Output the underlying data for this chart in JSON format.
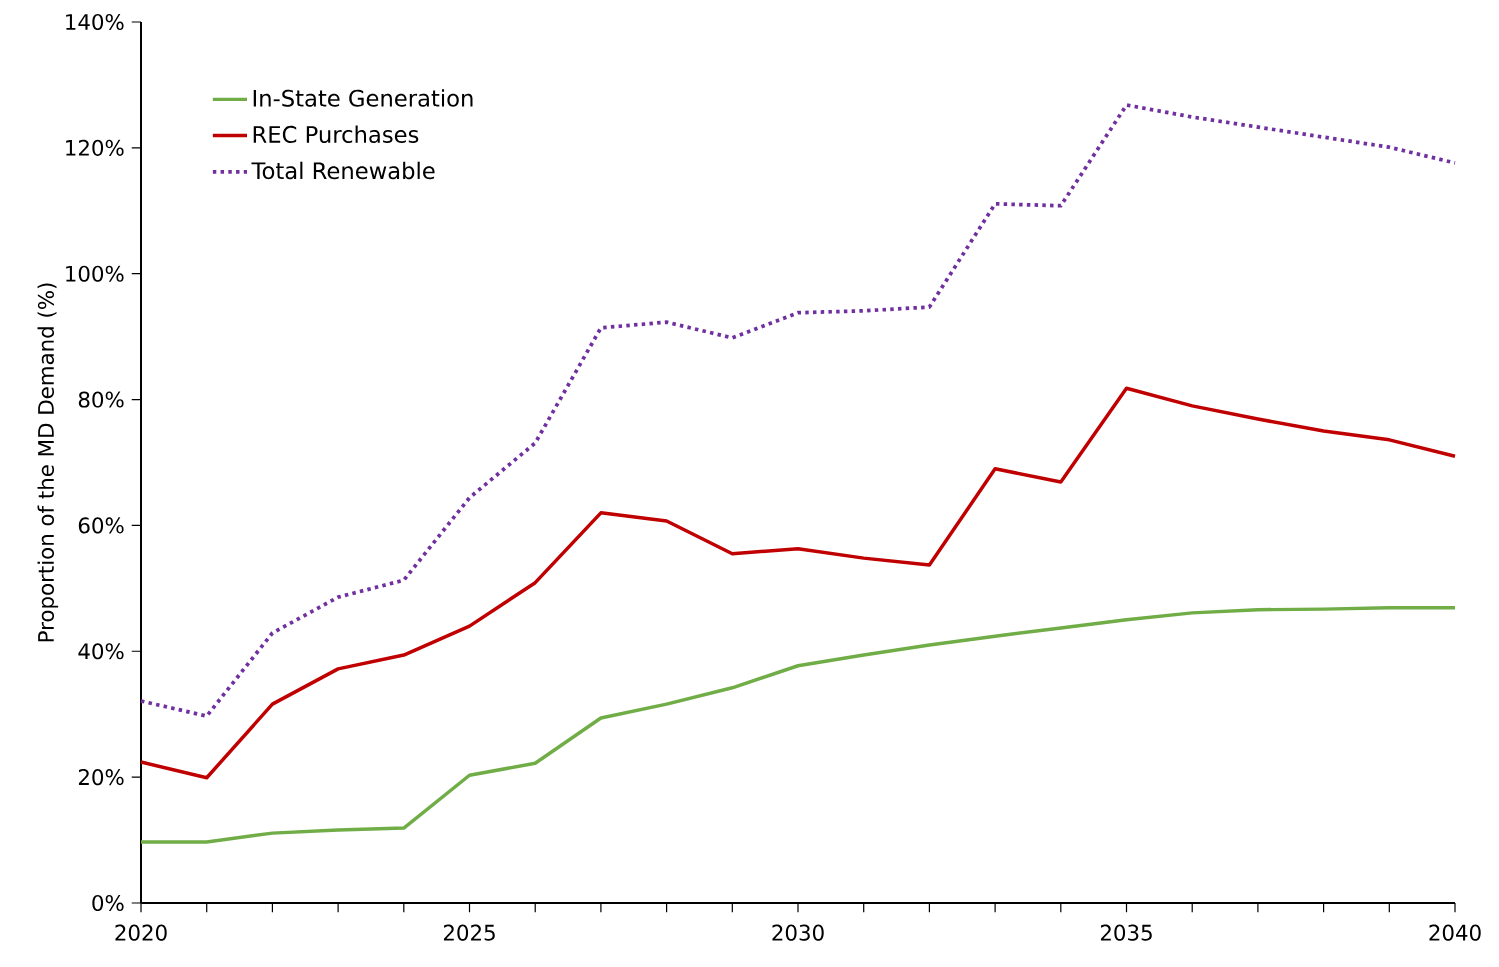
{
  "chart_data": {
    "type": "line",
    "ylabel": "Proportion of the MD Demand (%)",
    "x": [
      2020,
      2021,
      2022,
      2023,
      2024,
      2025,
      2026,
      2027,
      2028,
      2029,
      2030,
      2031,
      2032,
      2033,
      2034,
      2035,
      2036,
      2037,
      2038,
      2039,
      2040
    ],
    "series": [
      {
        "name": "In-State Generation",
        "color": "#70ad47",
        "line_style": "solid",
        "values": [
          9.7,
          9.7,
          11.1,
          11.6,
          11.9,
          20.3,
          22.2,
          29.4,
          31.6,
          34.2,
          37.7,
          39.4,
          41.0,
          42.4,
          43.7,
          45.0,
          46.1,
          46.6,
          46.7,
          46.9,
          46.9
        ]
      },
      {
        "name": "REC Purchases",
        "color": "#c00000",
        "line_style": "solid",
        "values": [
          22.4,
          19.9,
          31.6,
          37.2,
          39.4,
          44.0,
          50.9,
          62.0,
          60.7,
          55.5,
          56.3,
          54.8,
          53.7,
          69.0,
          66.9,
          81.8,
          79.0,
          76.9,
          75.0,
          73.6,
          71.0
        ]
      },
      {
        "name": "Total Renewable",
        "color": "#7030a0",
        "line_style": "dotted",
        "values": [
          32.1,
          29.7,
          42.9,
          48.6,
          51.3,
          64.4,
          73.1,
          91.4,
          92.3,
          89.8,
          93.8,
          94.1,
          94.7,
          111.1,
          110.8,
          126.8,
          124.9,
          123.3,
          121.7,
          120.1,
          117.6
        ]
      }
    ],
    "xlim": [
      2020,
      2040
    ],
    "xticks": [
      2020,
      {
        "value": 2021,
        "label": null
      },
      {
        "value": 2022,
        "label": null
      },
      {
        "value": 2023,
        "label": null
      },
      {
        "value": 2024,
        "label": null
      },
      2025,
      {
        "value": 2026,
        "label": null
      },
      {
        "value": 2027,
        "label": null
      },
      {
        "value": 2028,
        "label": null
      },
      {
        "value": 2029,
        "label": null
      },
      2030,
      {
        "value": 2031,
        "label": null
      },
      {
        "value": 2032,
        "label": null
      },
      {
        "value": 2033,
        "label": null
      },
      {
        "value": 2034,
        "label": null
      },
      2035,
      {
        "value": 2036,
        "label": null
      },
      {
        "value": 2037,
        "label": null
      },
      {
        "value": 2038,
        "label": null
      },
      {
        "value": 2039,
        "label": null
      },
      2040
    ],
    "ylim": [
      0,
      140
    ],
    "yticks": [
      {
        "value": 0,
        "label": "0%"
      },
      {
        "value": 20,
        "label": "20%"
      },
      {
        "value": 40,
        "label": "40%"
      },
      {
        "value": 60,
        "label": "60%"
      },
      {
        "value": 80,
        "label": "80%"
      },
      {
        "value": 100,
        "label": "100%"
      },
      {
        "value": 120,
        "label": "120%"
      },
      {
        "value": 140,
        "label": "140%"
      }
    ],
    "grid": false,
    "legend": "top left",
    "marker": "none"
  }
}
